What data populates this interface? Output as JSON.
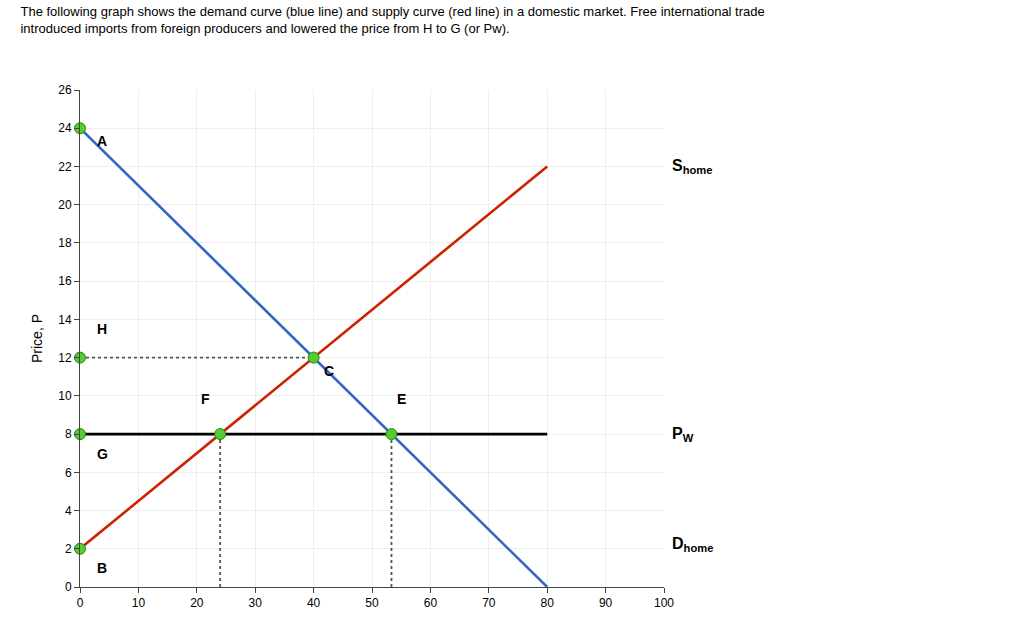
{
  "chart_data": {
    "type": "line",
    "title": "The following graph shows the demand curve (blue line) and supply curve (red line) in a domestic market. Free international trade",
    "subtitle": "introduced imports from foreign producers and lowered the price from H to G (or Pw).",
    "ylabel": "Price, P",
    "xlim": [
      0,
      100
    ],
    "ylim": [
      0,
      26
    ],
    "xticks": [
      0,
      10,
      20,
      30,
      40,
      50,
      60,
      70,
      80,
      90,
      100
    ],
    "yticks": [
      0,
      2,
      4,
      6,
      8,
      10,
      12,
      14,
      16,
      18,
      20,
      22,
      24,
      26
    ],
    "grid": true,
    "series": [
      {
        "type": "line",
        "color": "#3467c2",
        "line_style": "solid",
        "x": [
          0,
          80
        ],
        "values": [
          24,
          0
        ]
      },
      {
        "type": "line",
        "color": "#cc2200",
        "line_style": "solid",
        "x": [
          0,
          80
        ],
        "values": [
          2,
          22
        ]
      },
      {
        "type": "line",
        "color": "#000000",
        "line_style": "solid",
        "x": [
          0,
          80
        ],
        "values": [
          8,
          8
        ]
      },
      {
        "type": "line",
        "color": "#555555",
        "line_style": "dotted",
        "x": [
          0,
          40
        ],
        "values": [
          12,
          12
        ]
      },
      {
        "type": "line",
        "color": "#555555",
        "line_style": "dotted",
        "x": [
          24,
          24
        ],
        "values": [
          0,
          8
        ]
      },
      {
        "type": "line",
        "color": "#555555",
        "line_style": "dotted",
        "x": [
          53.333,
          53.333
        ],
        "values": [
          0,
          8
        ]
      },
      {
        "type": "scatter",
        "color": "#55cc33",
        "marker": "circle",
        "x": [
          0,
          0,
          40,
          0,
          0,
          24,
          53.333
        ],
        "values": [
          24,
          2,
          12,
          12,
          8,
          8,
          8
        ]
      }
    ],
    "annotations": [
      {
        "text": "A",
        "x": 2.5,
        "y": 22.8
      },
      {
        "text": "B",
        "x": 2.5,
        "y": 1.5
      },
      {
        "text": "C",
        "x": 41.5,
        "y": 11.8
      },
      {
        "text": "H",
        "x": 2.5,
        "y": 13.0
      },
      {
        "text": "G",
        "x": 2.5,
        "y": 7.5
      },
      {
        "text": "F",
        "x": 21.5,
        "y": 9.3
      },
      {
        "text": "E",
        "x": 55.0,
        "y": 9.3
      },
      {
        "text": "S",
        "sub": "home",
        "y": 22
      },
      {
        "text": "D",
        "sub": "home",
        "y": 2.2
      },
      {
        "text": "P",
        "sub": "W",
        "y": 8.0
      }
    ]
  }
}
